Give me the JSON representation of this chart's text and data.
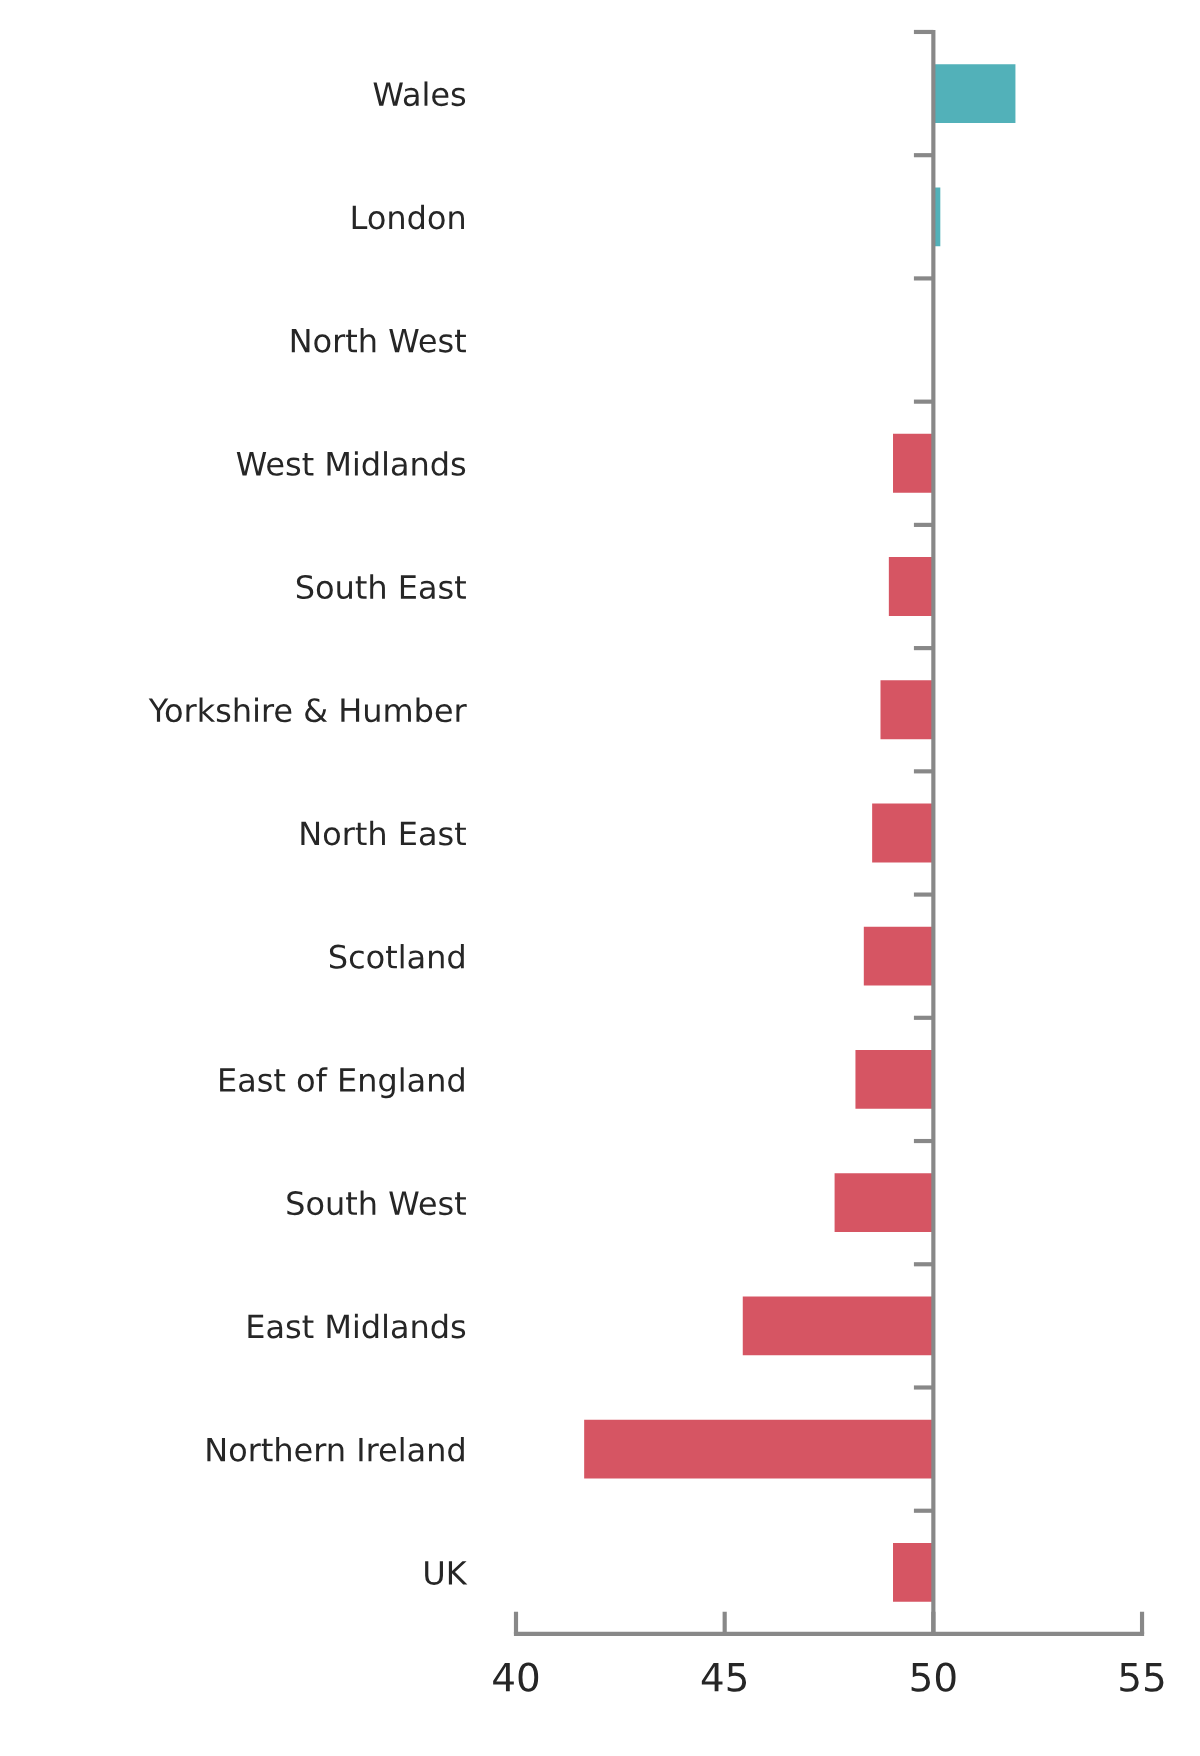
{
  "chart_data": {
    "type": "bar",
    "orientation": "horizontal",
    "categories": [
      "Wales",
      "London",
      "North West",
      "West Midlands",
      "South East",
      "Yorkshire & Humber",
      "North East",
      "Scotland",
      "East of England",
      "South West",
      "East Midlands",
      "Northern Ireland",
      "UK"
    ],
    "base": [
      50,
      50,
      null,
      50,
      50,
      50,
      50,
      50,
      50,
      50,
      50,
      50,
      50
    ],
    "values": [
      2.0,
      0.2,
      null,
      -1.0,
      -1.1,
      -1.3,
      -1.5,
      -1.7,
      -1.9,
      -2.4,
      -4.6,
      -8.4,
      -1.0
    ],
    "colors": [
      "#52b1b9",
      "#52b1b9",
      null,
      "#d65563",
      "#d65563",
      "#d65563",
      "#d65563",
      "#d65563",
      "#d65563",
      "#d65563",
      "#d65563",
      "#d65563",
      "#d65563"
    ],
    "xlim": [
      40,
      55
    ],
    "xticks": [
      40,
      45,
      50,
      55
    ]
  }
}
